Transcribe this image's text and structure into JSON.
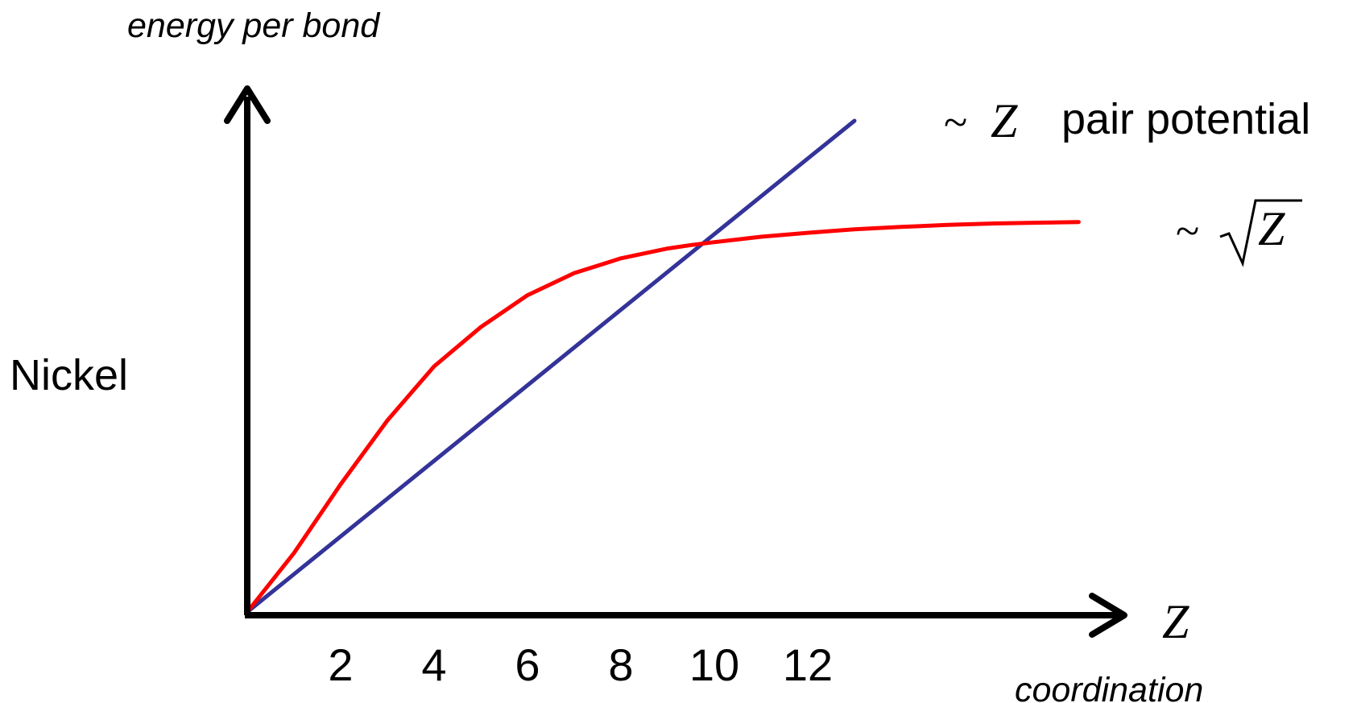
{
  "chart_data": {
    "type": "line",
    "ylabel": "energy per bond",
    "xlabel_symbol": "Z",
    "xlabel": "coordination",
    "side_label": "Nickel",
    "x_ticks": [
      2,
      4,
      6,
      8,
      10,
      12
    ],
    "x_tick_labels": [
      "2",
      "4",
      "6",
      "8",
      "10",
      "12"
    ],
    "xlim": [
      0,
      17.8
    ],
    "grid": false,
    "series": [
      {
        "name_prefix": "~",
        "name_symbol": "Z",
        "name": "pair potential",
        "color": "#333399",
        "x": [
          0,
          13
        ],
        "y": [
          0,
          1.0
        ]
      },
      {
        "name_prefix": "~",
        "name_symbol": "√Z",
        "name_radicand": "Z",
        "color": "#ff0000",
        "x": [
          0,
          1,
          2,
          3,
          4,
          5,
          6,
          7,
          8,
          9,
          9.5,
          10,
          11,
          12,
          13,
          14,
          15,
          16,
          17.8
        ],
        "y": [
          0,
          0.12,
          0.26,
          0.39,
          0.5,
          0.58,
          0.645,
          0.69,
          0.72,
          0.74,
          0.747,
          0.753,
          0.764,
          0.772,
          0.779,
          0.784,
          0.788,
          0.791,
          0.794
        ]
      }
    ]
  }
}
